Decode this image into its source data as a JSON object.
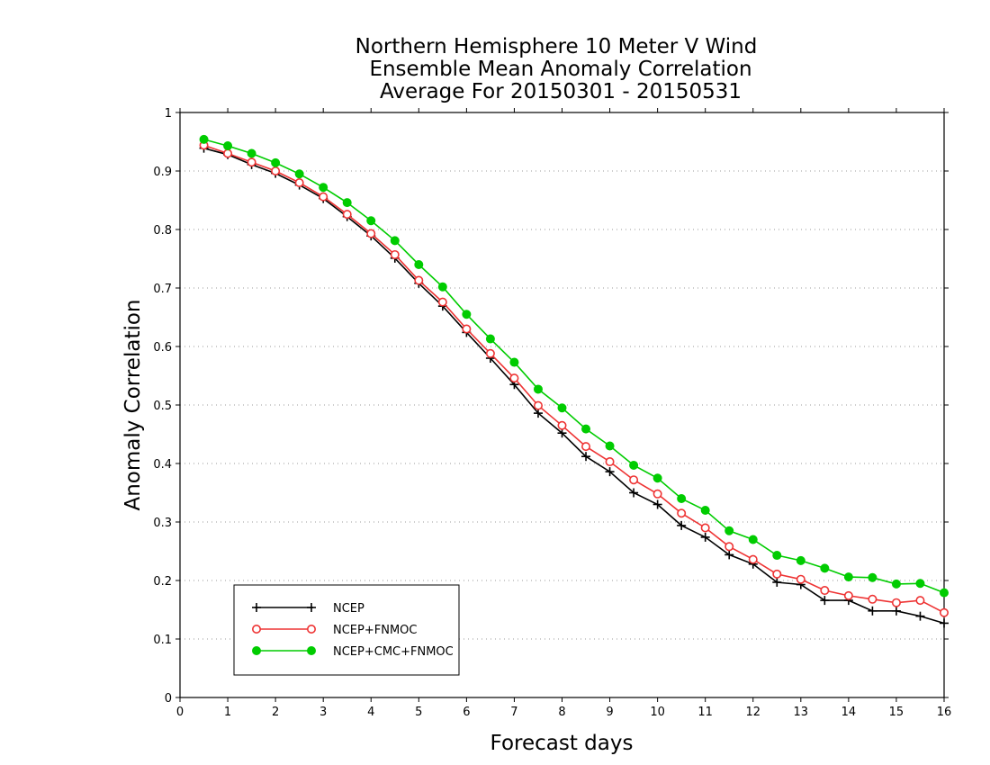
{
  "chart_data": {
    "type": "line",
    "title": [
      "Northern Hemisphere 10 Meter V Wind",
      "Ensemble Mean Anomaly Correlation",
      "Average For 20150301 - 20150531"
    ],
    "xlabel": "Forecast days",
    "ylabel": "Anomaly Correlation",
    "xlim": [
      0,
      16
    ],
    "ylim": [
      0,
      1
    ],
    "xticks": [
      "0",
      "1",
      "2",
      "3",
      "4",
      "5",
      "6",
      "7",
      "8",
      "9",
      "10",
      "11",
      "12",
      "13",
      "14",
      "15",
      "16"
    ],
    "yticks": [
      "0",
      "0.1",
      "0.2",
      "0.3",
      "0.4",
      "0.5",
      "0.6",
      "0.7",
      "0.8",
      "0.9",
      "1"
    ],
    "grid": "horizontal dotted",
    "legend_position": "bottom-left",
    "x": [
      0.5,
      1,
      1.5,
      2,
      2.5,
      3,
      3.5,
      4,
      4.5,
      5,
      5.5,
      6,
      6.5,
      7,
      7.5,
      8,
      8.5,
      9,
      9.5,
      10,
      10.5,
      11,
      11.5,
      12,
      12.5,
      13,
      13.5,
      14,
      14.5,
      15,
      15.5,
      16
    ],
    "series": [
      {
        "name": "NCEP",
        "color": "#000000",
        "marker": "plus",
        "values": [
          0.939,
          0.928,
          0.911,
          0.896,
          0.876,
          0.853,
          0.822,
          0.789,
          0.751,
          0.708,
          0.669,
          0.624,
          0.58,
          0.535,
          0.486,
          0.452,
          0.412,
          0.386,
          0.35,
          0.33,
          0.294,
          0.274,
          0.244,
          0.228,
          0.197,
          0.193,
          0.166,
          0.166,
          0.148,
          0.148,
          0.139,
          0.127
        ]
      },
      {
        "name": "NCEP+FNMOC",
        "color": "#ee3333",
        "marker": "open-circle",
        "values": [
          0.944,
          0.93,
          0.915,
          0.9,
          0.88,
          0.856,
          0.826,
          0.793,
          0.757,
          0.713,
          0.676,
          0.63,
          0.588,
          0.546,
          0.499,
          0.465,
          0.429,
          0.403,
          0.372,
          0.348,
          0.315,
          0.29,
          0.258,
          0.236,
          0.211,
          0.202,
          0.183,
          0.174,
          0.168,
          0.162,
          0.166,
          0.145
        ]
      },
      {
        "name": "NCEP+CMC+FNMOC",
        "color": "#00cc00",
        "marker": "filled-circle",
        "values": [
          0.954,
          0.943,
          0.93,
          0.914,
          0.895,
          0.872,
          0.846,
          0.815,
          0.781,
          0.74,
          0.702,
          0.655,
          0.613,
          0.573,
          0.527,
          0.495,
          0.459,
          0.43,
          0.397,
          0.375,
          0.34,
          0.32,
          0.285,
          0.27,
          0.243,
          0.234,
          0.221,
          0.206,
          0.205,
          0.194,
          0.195,
          0.179
        ]
      }
    ]
  }
}
